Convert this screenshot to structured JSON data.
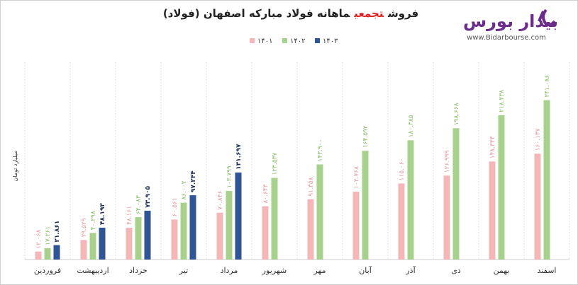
{
  "logo": {
    "name": "بیدار بورس",
    "url": "www.Bidarbourse.com"
  },
  "chart_data": {
    "type": "bar",
    "title_parts": [
      {
        "text": "فروش",
        "color": "#222222"
      },
      {
        "text": "تجمعی",
        "color": "#e02020"
      },
      {
        "text": "ماهانه فولاد مبارکه اصفهان (فولاد)",
        "color": "#222222"
      }
    ],
    "y_label": "میلیارد تومان",
    "categories": [
      "فروردین",
      "اردیبهشت",
      "خرداد",
      "تیر",
      "مرداد",
      "شهریور",
      "مهر",
      "آبان",
      "آذر",
      "دی",
      "بهمن",
      "اسفند"
    ],
    "ylim": [
      0,
      260000
    ],
    "series": [
      {
        "name": "۱۴۰۱",
        "color": "#f4b6b8",
        "label_color": "#e8999c",
        "values": [
          12068,
          29529,
          48161,
          60561,
          70846,
          80643,
          91358,
          102768,
          115060,
          126999,
          148334,
          160137
        ],
        "value_labels": [
          "۱۲.۰۶۸",
          "۲۹.۵۲۹",
          "۴۸.۱۶۱",
          "۶۰.۵۶۱",
          "۷۰.۸۴۶",
          "۸۰.۶۴۳",
          "۹۱.۳۵۸",
          "۱۰۲.۷۶۸",
          "۱۱۵.۰۶۰",
          "۱۲۶.۹۹۹",
          "۱۴۸.۳۳۴",
          "۱۶۰.۱۳۷"
        ]
      },
      {
        "name": "۱۴۰۲",
        "color": "#a9d18e",
        "label_color": "#86bd63",
        "values": [
          17261,
          40298,
          64083,
          86002,
          103799,
          123537,
          143900,
          164592,
          180385,
          198668,
          218438,
          241086
        ],
        "value_labels": [
          "۱۷.۲۶۱",
          "۴۰.۲۹۸",
          "۶۴.۰۸۳",
          "۸۶.۰۰۲",
          "۱۰۳.۷۹۹",
          "۱۲۳.۵۳۷",
          "۱۴۳.۹۰۰",
          "۱۶۴.۵۹۲",
          "۱۸۰.۳۸۵",
          "۱۹۸.۶۶۸",
          "۲۱۸.۴۳۸",
          "۲۴۱.۰۸۶"
        ]
      },
      {
        "name": "۱۴۰۳",
        "color": "#2f5597",
        "label_color": "#1f2f55",
        "values": [
          21861,
          48193,
          73905,
          97244,
          131697,
          null,
          null,
          null,
          null,
          null,
          null,
          null
        ],
        "value_labels": [
          "۲۱.۸۶۱",
          "۴۸.۱۹۳",
          "۷۳.۹۰۵",
          "۹۷.۲۴۴",
          "۱۳۱.۶۹۷",
          null,
          null,
          null,
          null,
          null,
          null,
          null
        ]
      }
    ]
  }
}
